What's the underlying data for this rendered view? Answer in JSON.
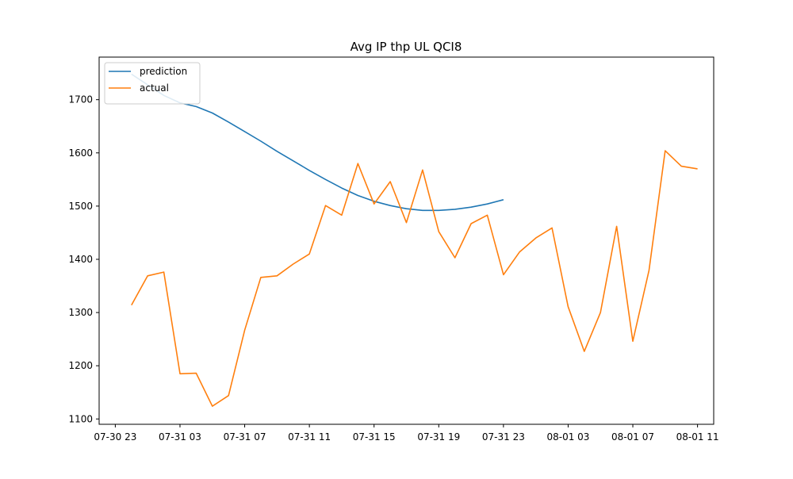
{
  "chart_data": {
    "type": "line",
    "title": "Avg IP thp UL QCI8",
    "xlabel": "",
    "ylabel": "",
    "x_unit": "hours",
    "x_start_label": "07-30 23",
    "xlim": [
      "07-30 22",
      "08-01 12"
    ],
    "ylim": [
      1090,
      1780
    ],
    "x_ticks": [
      {
        "x": "07-30 23",
        "label": "07-30 23"
      },
      {
        "x": "07-31 03",
        "label": "07-31 03"
      },
      {
        "x": "07-31 07",
        "label": "07-31 07"
      },
      {
        "x": "07-31 11",
        "label": "07-31 11"
      },
      {
        "x": "07-31 15",
        "label": "07-31 15"
      },
      {
        "x": "07-31 19",
        "label": "07-31 19"
      },
      {
        "x": "07-31 23",
        "label": "07-31 23"
      },
      {
        "x": "08-01 03",
        "label": "08-01 03"
      },
      {
        "x": "08-01 07",
        "label": "08-01 07"
      },
      {
        "x": "08-01 11",
        "label": "08-01 11"
      }
    ],
    "y_ticks": [
      1100,
      1200,
      1300,
      1400,
      1500,
      1600,
      1700
    ],
    "legend_position": "upper-left",
    "grid": false,
    "series": [
      {
        "name": "prediction",
        "color": "#1f77b4",
        "x": [
          "07-31 00",
          "07-31 01",
          "07-31 02",
          "07-31 03",
          "07-31 04",
          "07-31 05",
          "07-31 06",
          "07-31 07",
          "07-31 08",
          "07-31 09",
          "07-31 10",
          "07-31 11",
          "07-31 12",
          "07-31 13",
          "07-31 14",
          "07-31 15",
          "07-31 16",
          "07-31 17",
          "07-31 18",
          "07-31 19",
          "07-31 20",
          "07-31 21",
          "07-31 22",
          "07-31 23"
        ],
        "values": [
          1748,
          1728,
          1708,
          1694,
          1687,
          1675,
          1658,
          1640,
          1622,
          1603,
          1585,
          1567,
          1550,
          1534,
          1520,
          1509,
          1501,
          1495,
          1492,
          1492,
          1494,
          1498,
          1504,
          1512
        ]
      },
      {
        "name": "actual",
        "color": "#ff7f0e",
        "x": [
          "07-31 00",
          "07-31 01",
          "07-31 02",
          "07-31 03",
          "07-31 04",
          "07-31 05",
          "07-31 06",
          "07-31 07",
          "07-31 08",
          "07-31 09",
          "07-31 10",
          "07-31 11",
          "07-31 12",
          "07-31 13",
          "07-31 14",
          "07-31 15",
          "07-31 16",
          "07-31 17",
          "07-31 18",
          "07-31 19",
          "07-31 20",
          "07-31 21",
          "07-31 22",
          "07-31 23",
          "08-01 00",
          "08-01 01",
          "08-01 02",
          "08-01 03",
          "08-01 04",
          "08-01 05",
          "08-01 06",
          "08-01 07",
          "08-01 08",
          "08-01 09",
          "08-01 10",
          "08-01 11"
        ],
        "values": [
          1314,
          1369,
          1376,
          1185,
          1186,
          1124,
          1144,
          1267,
          1366,
          1369,
          1391,
          1410,
          1501,
          1483,
          1580,
          1504,
          1546,
          1469,
          1568,
          1452,
          1403,
          1467,
          1483,
          1371,
          1414,
          1440,
          1459,
          1311,
          1227,
          1300,
          1462,
          1246,
          1379,
          1604,
          1575,
          1570
        ]
      }
    ]
  }
}
